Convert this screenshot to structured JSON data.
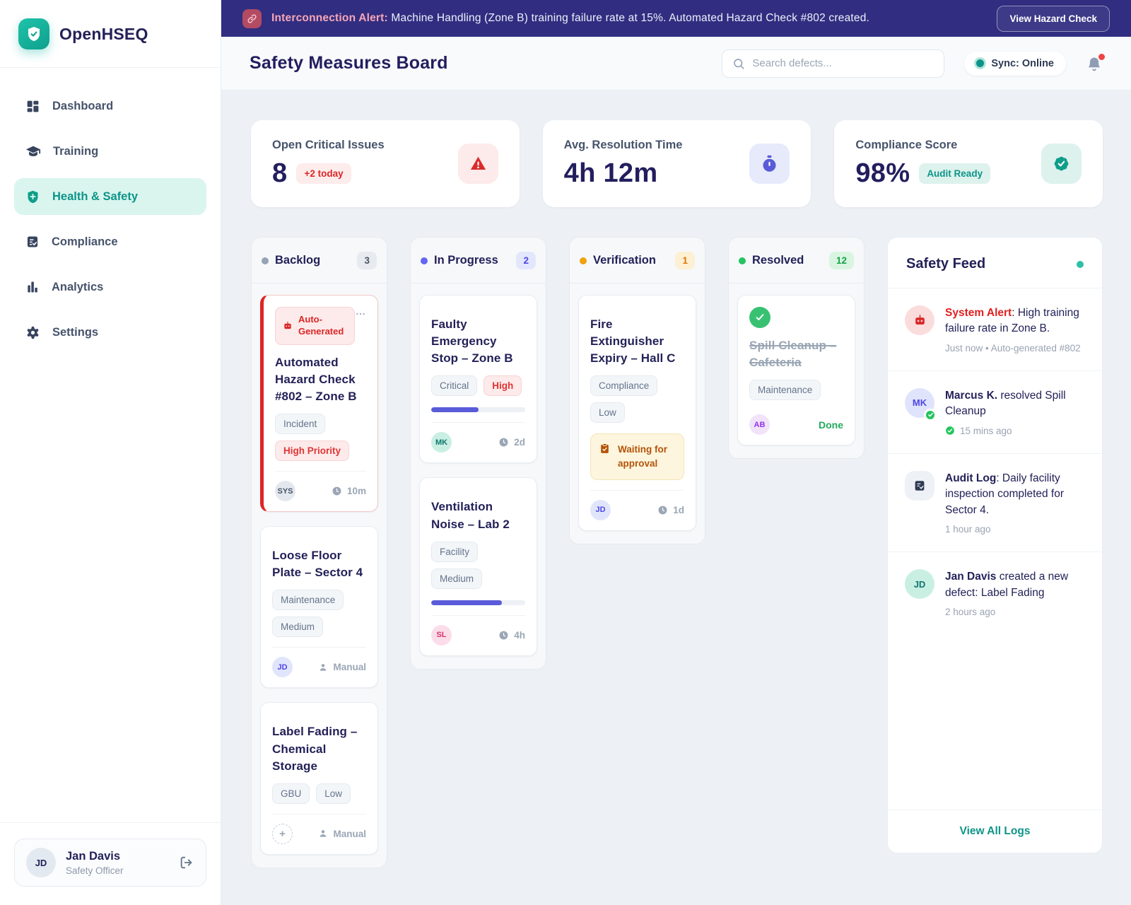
{
  "banner": {
    "accent": "Interconnection Alert:",
    "message": " Machine Handling (Zone B) training failure rate at 15%. Automated Hazard Check #802 created.",
    "button": "View Hazard Check"
  },
  "sidebar": {
    "brand": "OpenHSEQ",
    "items": [
      {
        "label": "Dashboard"
      },
      {
        "label": "Training"
      },
      {
        "label": "Health & Safety",
        "active": true
      },
      {
        "label": "Compliance"
      },
      {
        "label": "Analytics"
      },
      {
        "label": "Settings"
      }
    ],
    "user": {
      "initials": "JD",
      "name": "Jan Davis",
      "role": "Safety Officer"
    }
  },
  "header": {
    "title": "Safety Measures Board",
    "search_placeholder": "Search defects...",
    "sync": "Sync: Online"
  },
  "kpis": [
    {
      "label": "Open Critical Issues",
      "value": "8",
      "badge": "+2 today"
    },
    {
      "label": "Avg. Resolution Time",
      "value": "4h 12m"
    },
    {
      "label": "Compliance Score",
      "value": "98%",
      "badge": "Audit Ready"
    }
  ],
  "board": {
    "columns": [
      {
        "name": "Backlog",
        "count": "3",
        "cards": [
          {
            "badge": "Auto-Generated",
            "title": "Automated Hazard Check #802 – Zone B",
            "tags": [
              "Incident",
              "High Priority"
            ],
            "assignee": "SYS",
            "meta": "10m"
          },
          {
            "title": "Loose Floor Plate – Sector 4",
            "tags": [
              "Maintenance",
              "Medium"
            ],
            "assignee": "JD",
            "meta": "Manual"
          },
          {
            "title": "Label Fading – Chemical Storage",
            "tags": [
              "GBU",
              "Low"
            ],
            "assignee": "+",
            "meta": "Manual"
          }
        ]
      },
      {
        "name": "In Progress",
        "count": "2",
        "cards": [
          {
            "title": "Faulty Emergency Stop – Zone B",
            "tags": [
              "Critical",
              "High"
            ],
            "progress": 50,
            "assignee": "MK",
            "meta": "2d"
          },
          {
            "title": "Ventilation Noise – Lab 2",
            "tags": [
              "Facility",
              "Medium"
            ],
            "progress": 75,
            "assignee": "SL",
            "meta": "4h"
          }
        ]
      },
      {
        "name": "Verification",
        "count": "1",
        "cards": [
          {
            "title": "Fire Extinguisher Expiry – Hall C",
            "tags": [
              "Compliance",
              "Low"
            ],
            "note": "Waiting for approval",
            "assignee": "JD",
            "meta": "1d"
          }
        ]
      },
      {
        "name": "Resolved",
        "count": "12",
        "cards": [
          {
            "title": "Spill Cleanup – Cafeteria",
            "tags": [
              "Maintenance"
            ],
            "assignee": "AB",
            "meta": "Done"
          }
        ]
      }
    ]
  },
  "feed": {
    "title": "Safety Feed",
    "items": [
      {
        "actor": "System Alert",
        "text": ": High training failure rate in Zone B.",
        "meta": "Just now • Auto-generated #802"
      },
      {
        "actor": "Marcus K.",
        "text": " resolved Spill Cleanup",
        "meta": "15 mins ago"
      },
      {
        "actor": "Audit Log",
        "text": ": Daily facility inspection completed for Sector 4.",
        "meta": "1 hour ago"
      },
      {
        "actor": "Jan Davis",
        "text": " created a new defect: Label Fading",
        "meta": "2 hours ago"
      }
    ],
    "footer": "View All Logs"
  },
  "colors": {
    "brand_teal": "#0d9488",
    "alert_red": "#dc2626",
    "indigo": "#5a5bd8",
    "amber": "#f59e0b",
    "green": "#22c55e",
    "banner_bg": "#312e81"
  }
}
